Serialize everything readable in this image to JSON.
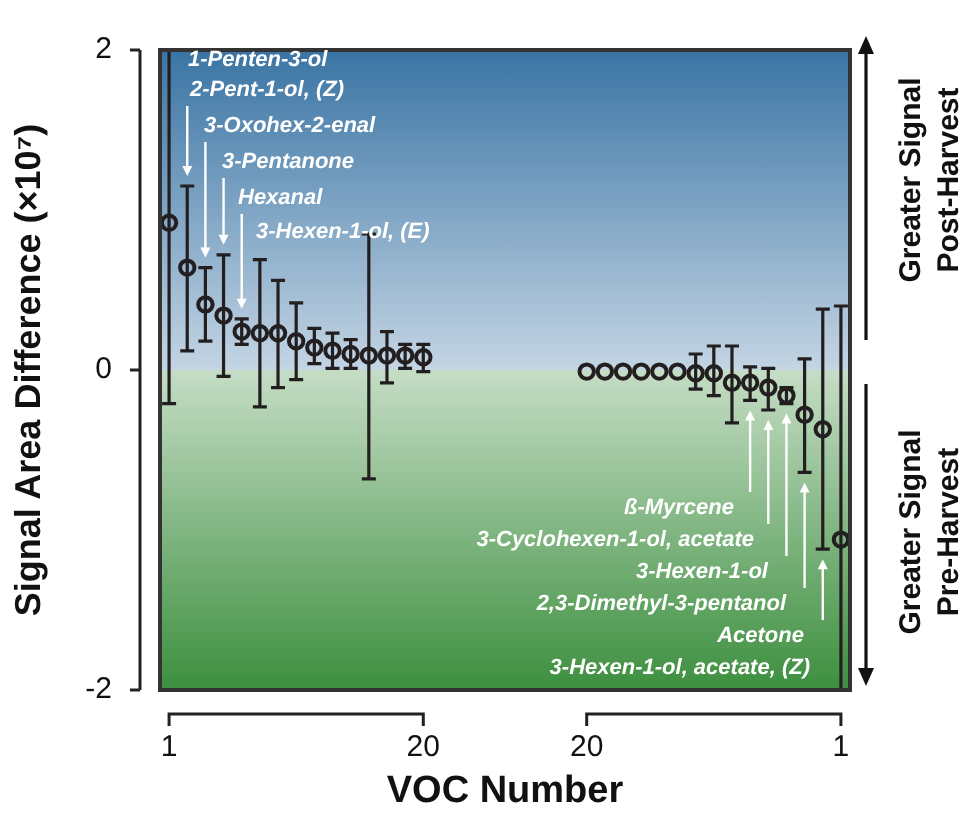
{
  "chart_data": {
    "type": "scatter",
    "xlabel": "VOC Number",
    "ylabel": "Signal Area Difference (×10⁷)",
    "categories": [
      "1",
      null,
      null,
      null,
      null,
      null,
      null,
      null,
      null,
      null,
      null,
      null,
      null,
      null,
      "20",
      null,
      null,
      null,
      null,
      null,
      null,
      null,
      null,
      "20",
      null,
      null,
      null,
      null,
      null,
      null,
      null,
      null,
      null,
      null,
      null,
      null,
      null,
      "1"
    ],
    "series": [
      {
        "color": "#231f20",
        "values": [
          0.92,
          0.64,
          0.41,
          0.34,
          0.24,
          0.23,
          0.23,
          0.18,
          0.14,
          0.12,
          0.1,
          0.09,
          0.09,
          0.09,
          0.08,
          null,
          null,
          null,
          null,
          null,
          null,
          null,
          null,
          -0.01,
          -0.01,
          -0.01,
          -0.01,
          -0.01,
          -0.01,
          -0.02,
          -0.02,
          -0.08,
          -0.08,
          -0.11,
          -0.16,
          -0.28,
          -0.37,
          -1.06
        ],
        "errors": [
          [
            -0.21,
            2
          ],
          [
            0.12,
            1.15
          ],
          [
            0.18,
            0.64
          ],
          [
            -0.04,
            0.72
          ],
          [
            0.16,
            0.32
          ],
          [
            -0.23,
            0.69
          ],
          [
            -0.11,
            0.56
          ],
          [
            -0.06,
            0.42
          ],
          [
            0.04,
            0.26
          ],
          [
            0.01,
            0.23
          ],
          [
            0.01,
            0.19
          ],
          [
            -0.68,
            0.85
          ],
          [
            -0.08,
            0.24
          ],
          [
            0.01,
            0.16
          ],
          [
            -0.01,
            0.16
          ],
          null,
          null,
          null,
          null,
          null,
          null,
          null,
          null,
          null,
          null,
          null,
          null,
          null,
          null,
          [
            -0.12,
            0.1
          ],
          [
            -0.16,
            0.15
          ],
          [
            -0.33,
            0.15
          ],
          [
            -0.19,
            0.02
          ],
          [
            -0.25,
            0.01
          ],
          [
            -0.21,
            -0.11
          ],
          [
            -0.64,
            0.07
          ],
          [
            -1.12,
            0.38
          ],
          [
            -2,
            0.4
          ]
        ]
      }
    ],
    "ylim": [
      -2,
      2
    ],
    "yticks": [
      -2,
      0,
      2
    ],
    "marker": "circle",
    "grid": false,
    "legend": false,
    "bands": [
      {
        "axis": "y",
        "from": 0,
        "to": 2,
        "color": "#3a74a4"
      },
      {
        "axis": "y",
        "from": -2,
        "to": 0,
        "color": "#3d8f3f"
      }
    ],
    "annotations": [
      "1-Penten-3-ol",
      "2-Pent-1-ol, (Z)",
      "3-Oxohex-2-enal",
      "3-Pentanone",
      "Hexanal",
      "3-Hexen-1-ol, (E)",
      "ß-Myrcene",
      "3-Cyclohexen-1-ol, acetate",
      "3-Hexen-1-ol",
      "2,3-Dimethyl-3-pentanol",
      "Acetone",
      "3-Hexen-1-ol, acetate, (Z)",
      "Greater Signal Post-Harvest",
      "Greater Signal Pre-Harvest"
    ]
  }
}
